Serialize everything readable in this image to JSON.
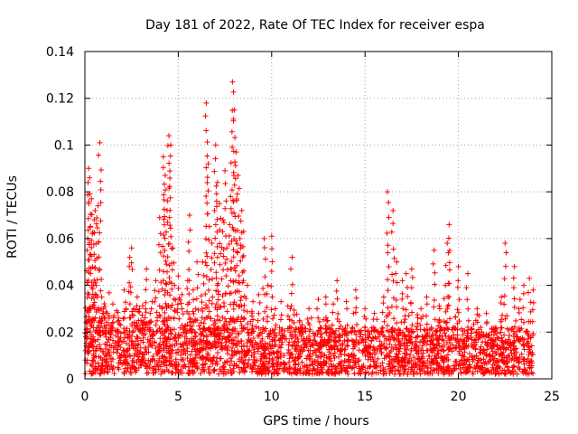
{
  "chart_data": {
    "type": "scatter",
    "title": "Day 181 of 2022, Rate Of TEC Index for receiver espa",
    "xlabel": "GPS time / hours",
    "ylabel": "ROTI / TECUs",
    "xlim": [
      0,
      25
    ],
    "ylim": [
      0,
      0.14
    ],
    "x_ticks": [
      0,
      5,
      10,
      15,
      20,
      25
    ],
    "y_ticks": [
      0,
      0.02,
      0.04,
      0.06,
      0.08,
      0.1,
      0.12,
      0.14
    ],
    "x_tick_labels": [
      "0",
      "5",
      "10",
      "15",
      "20",
      "25"
    ],
    "y_tick_labels": [
      "0",
      "0.02",
      "0.04",
      "0.06",
      "0.08",
      "0.1",
      "0.12",
      "0.14"
    ],
    "grid": true,
    "marker": "+",
    "marker_color": "#ff0000",
    "series": [
      {
        "name": "ROTI",
        "x": [
          0.05,
          0.15,
          0.2,
          0.25,
          0.3,
          0.35,
          0.4,
          0.5,
          0.55,
          0.6,
          0.7,
          0.8,
          0.9,
          1.0,
          1.2,
          1.5,
          1.8,
          2.1,
          2.4,
          2.5,
          2.6,
          2.8,
          3.0,
          3.3,
          3.5,
          3.6,
          3.8,
          4.0,
          4.2,
          4.3,
          4.4,
          4.5,
          4.6,
          4.7,
          4.8,
          5.0,
          5.2,
          5.5,
          5.6,
          5.8,
          6.0,
          6.3,
          6.5,
          6.6,
          6.8,
          7.0,
          7.1,
          7.2,
          7.4,
          7.5,
          7.6,
          7.8,
          7.9,
          8.0,
          8.1,
          8.2,
          8.3,
          8.4,
          8.5,
          8.7,
          9.0,
          9.3,
          9.6,
          9.8,
          10.0,
          10.2,
          10.5,
          11.0,
          11.1,
          11.5,
          12.0,
          12.5,
          12.9,
          13.3,
          13.5,
          14.0,
          14.5,
          15.0,
          15.5,
          16.0,
          16.2,
          16.5,
          16.7,
          17.0,
          17.2,
          17.5,
          18.0,
          18.3,
          18.7,
          19.0,
          19.3,
          19.4,
          19.5,
          20.0,
          20.5,
          21.0,
          21.5,
          22.0,
          22.3,
          22.5,
          23.0,
          23.3,
          23.5,
          23.8,
          24.0
        ],
        "y": [
          0.018,
          0.06,
          0.09,
          0.086,
          0.045,
          0.077,
          0.062,
          0.068,
          0.072,
          0.04,
          0.074,
          0.101,
          0.035,
          0.03,
          0.028,
          0.032,
          0.026,
          0.038,
          0.052,
          0.056,
          0.03,
          0.035,
          0.025,
          0.047,
          0.028,
          0.033,
          0.042,
          0.069,
          0.095,
          0.087,
          0.072,
          0.104,
          0.1,
          0.056,
          0.04,
          0.044,
          0.036,
          0.042,
          0.07,
          0.038,
          0.05,
          0.05,
          0.118,
          0.092,
          0.058,
          0.1,
          0.084,
          0.075,
          0.068,
          0.089,
          0.056,
          0.078,
          0.127,
          0.115,
          0.097,
          0.087,
          0.06,
          0.072,
          0.063,
          0.04,
          0.033,
          0.036,
          0.06,
          0.04,
          0.061,
          0.03,
          0.033,
          0.03,
          0.052,
          0.025,
          0.03,
          0.034,
          0.035,
          0.032,
          0.042,
          0.033,
          0.038,
          0.03,
          0.028,
          0.035,
          0.08,
          0.072,
          0.05,
          0.042,
          0.045,
          0.047,
          0.03,
          0.035,
          0.055,
          0.03,
          0.04,
          0.058,
          0.066,
          0.048,
          0.045,
          0.03,
          0.028,
          0.022,
          0.035,
          0.058,
          0.048,
          0.034,
          0.04,
          0.043,
          0.038
        ],
        "dense_band": {
          "x_range": [
            0,
            24
          ],
          "y_range": [
            0.002,
            0.022
          ],
          "description": "dense cluster of points between ~0.005 and ~0.02 across all hours"
        }
      }
    ]
  }
}
